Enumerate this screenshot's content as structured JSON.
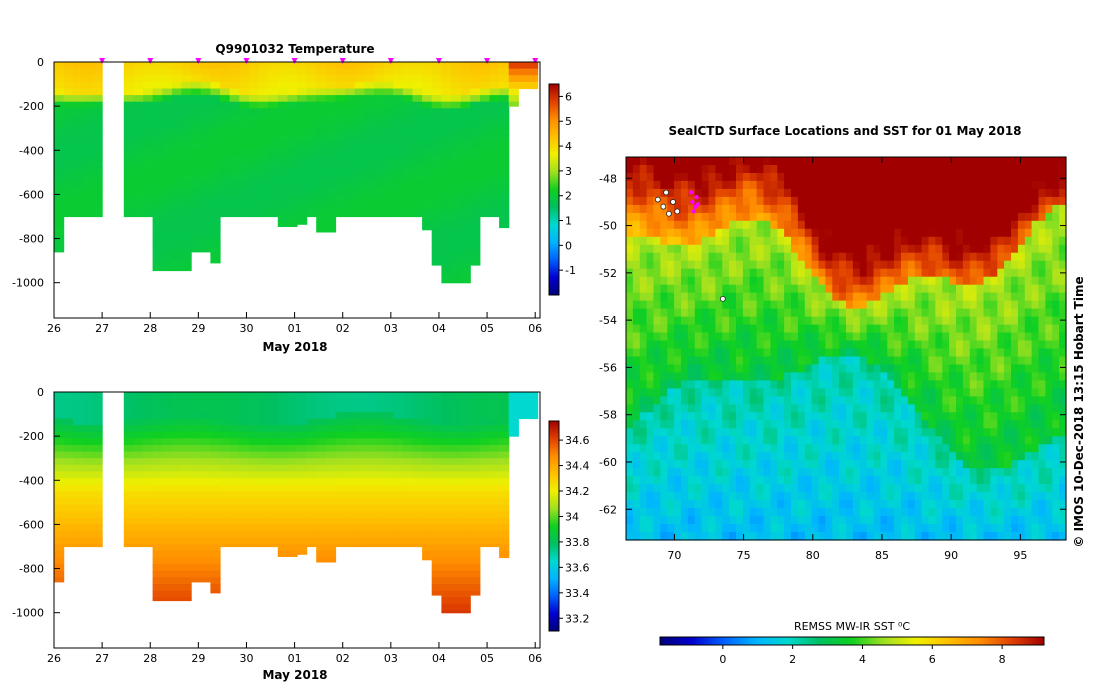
{
  "colors": {
    "cmap": [
      "#00007a",
      "#0000d0",
      "#0060ff",
      "#00b4ff",
      "#00d8d0",
      "#00c060",
      "#10d020",
      "#a0e020",
      "#f0f000",
      "#ffc000",
      "#ff8c00",
      "#e04000",
      "#a00000"
    ],
    "marker": "#ff00ff",
    "seals": "#ff00ff"
  },
  "chart_data": [
    {
      "type": "heatmap",
      "name": "temperature-section",
      "title": "Q9901032  Temperature",
      "xlabel": "May 2018",
      "x_tick_labels": [
        "26",
        "27",
        "28",
        "29",
        "30",
        "01",
        "02",
        "03",
        "04",
        "05",
        "06"
      ],
      "x_ticks": [
        0,
        1,
        2,
        3,
        4,
        5,
        6,
        7,
        8,
        9,
        10
      ],
      "xlim": [
        0,
        10.1
      ],
      "y_tick_labels": [
        "0",
        "-200",
        "-400",
        "-600",
        "-800",
        "-1000"
      ],
      "y_ticks": [
        0,
        -200,
        -400,
        -600,
        -800,
        -1000
      ],
      "ylim": [
        -1160,
        0
      ],
      "colorbar": {
        "min": -2,
        "max": 6.5,
        "ticks": [
          6,
          5,
          4,
          3,
          2,
          1,
          0,
          -1
        ]
      },
      "profile_marker_times": [
        1,
        2,
        3,
        4,
        5,
        6,
        7,
        8,
        9,
        10
      ],
      "profiles": [
        {
          "t": 0.1,
          "w": 0.2,
          "depth": 860
        },
        {
          "t": 0.3,
          "w": 0.2,
          "depth": 700
        },
        {
          "t": 0.5,
          "w": 0.2,
          "depth": 700
        },
        {
          "t": 0.7,
          "w": 0.2,
          "depth": 700
        },
        {
          "t": 0.9,
          "w": 0.2,
          "depth": 700
        },
        {
          "t": 1.55,
          "w": 0.2,
          "depth": 700
        },
        {
          "t": 1.75,
          "w": 0.2,
          "depth": 700
        },
        {
          "t": 1.95,
          "w": 0.2,
          "depth": 700
        },
        {
          "t": 2.15,
          "w": 0.2,
          "depth": 945
        },
        {
          "t": 2.35,
          "w": 0.2,
          "depth": 945
        },
        {
          "t": 2.55,
          "w": 0.2,
          "depth": 945
        },
        {
          "t": 2.75,
          "w": 0.2,
          "depth": 945
        },
        {
          "t": 2.95,
          "w": 0.2,
          "depth": 860
        },
        {
          "t": 3.15,
          "w": 0.2,
          "depth": 860
        },
        {
          "t": 3.35,
          "w": 0.2,
          "depth": 910
        },
        {
          "t": 3.55,
          "w": 0.2,
          "depth": 700
        },
        {
          "t": 3.75,
          "w": 0.2,
          "depth": 700
        },
        {
          "t": 3.95,
          "w": 0.2,
          "depth": 700
        },
        {
          "t": 4.15,
          "w": 0.2,
          "depth": 700
        },
        {
          "t": 4.35,
          "w": 0.2,
          "depth": 700
        },
        {
          "t": 4.55,
          "w": 0.2,
          "depth": 700
        },
        {
          "t": 4.75,
          "w": 0.2,
          "depth": 745
        },
        {
          "t": 4.95,
          "w": 0.2,
          "depth": 745
        },
        {
          "t": 5.15,
          "w": 0.2,
          "depth": 735
        },
        {
          "t": 5.35,
          "w": 0.2,
          "depth": 700
        },
        {
          "t": 5.55,
          "w": 0.2,
          "depth": 770
        },
        {
          "t": 5.75,
          "w": 0.2,
          "depth": 770
        },
        {
          "t": 5.95,
          "w": 0.2,
          "depth": 700
        },
        {
          "t": 6.15,
          "w": 0.2,
          "depth": 700
        },
        {
          "t": 6.35,
          "w": 0.2,
          "depth": 700
        },
        {
          "t": 6.55,
          "w": 0.2,
          "depth": 700
        },
        {
          "t": 6.75,
          "w": 0.2,
          "depth": 700
        },
        {
          "t": 6.95,
          "w": 0.2,
          "depth": 700
        },
        {
          "t": 7.15,
          "w": 0.2,
          "depth": 700
        },
        {
          "t": 7.35,
          "w": 0.2,
          "depth": 700
        },
        {
          "t": 7.55,
          "w": 0.2,
          "depth": 700
        },
        {
          "t": 7.75,
          "w": 0.2,
          "depth": 760
        },
        {
          "t": 7.95,
          "w": 0.2,
          "depth": 920
        },
        {
          "t": 8.15,
          "w": 0.2,
          "depth": 1000
        },
        {
          "t": 8.35,
          "w": 0.2,
          "depth": 1000
        },
        {
          "t": 8.55,
          "w": 0.2,
          "depth": 1000
        },
        {
          "t": 8.75,
          "w": 0.2,
          "depth": 920
        },
        {
          "t": 8.95,
          "w": 0.2,
          "depth": 700
        },
        {
          "t": 9.15,
          "w": 0.2,
          "depth": 700
        },
        {
          "t": 9.35,
          "w": 0.2,
          "depth": 750
        },
        {
          "t": 9.55,
          "w": 0.2,
          "depth": 200
        },
        {
          "t": 9.75,
          "w": 0.2,
          "depth": 120
        },
        {
          "t": 9.95,
          "w": 0.2,
          "depth": 120
        }
      ]
    },
    {
      "type": "heatmap",
      "name": "salinity-section",
      "title": "",
      "xlabel": "May 2018",
      "x_tick_labels": [
        "26",
        "27",
        "28",
        "29",
        "30",
        "01",
        "02",
        "03",
        "04",
        "05",
        "06"
      ],
      "x_ticks": [
        0,
        1,
        2,
        3,
        4,
        5,
        6,
        7,
        8,
        9,
        10
      ],
      "xlim": [
        0,
        10.1
      ],
      "y_tick_labels": [
        "0",
        "-200",
        "-400",
        "-600",
        "-800",
        "-1000"
      ],
      "y_ticks": [
        0,
        -200,
        -400,
        -600,
        -800,
        -1000
      ],
      "ylim": [
        -1160,
        0
      ],
      "colorbar": {
        "min": 33.1,
        "max": 34.75,
        "ticks": [
          34.6,
          34.4,
          34.2,
          34.0,
          33.8,
          33.6,
          33.4,
          33.2
        ],
        "tick_labels": [
          "34.6",
          "34.4",
          "34.2",
          "34",
          "33.8",
          "33.6",
          "33.4",
          "33.2"
        ]
      }
    },
    {
      "type": "heatmap",
      "name": "sst-map",
      "title": "SealCTD Surface Locations and SST for 01 May 2018",
      "x_tick_labels": [
        "70",
        "75",
        "80",
        "85",
        "90",
        "95"
      ],
      "x_ticks": [
        70,
        75,
        80,
        85,
        90,
        95
      ],
      "xlim": [
        66.5,
        98.3
      ],
      "y_tick_labels": [
        "-48",
        "-50",
        "-52",
        "-54",
        "-56",
        "-58",
        "-60",
        "-62"
      ],
      "y_ticks": [
        -48,
        -50,
        -52,
        -54,
        -56,
        -58,
        -60,
        -62
      ],
      "ylim": [
        -63.3,
        -47.1
      ],
      "colorbar": {
        "label": "REMSS MW-IR SST ⁰C",
        "min": -1.8,
        "max": 9.2,
        "ticks": [
          0,
          2,
          4,
          6,
          8
        ]
      },
      "seal_positions": [
        {
          "lon": 71.3,
          "lat": -49.0
        },
        {
          "lon": 71.5,
          "lat": -49.2
        },
        {
          "lon": 71.6,
          "lat": -48.8
        },
        {
          "lon": 71.4,
          "lat": -49.4
        },
        {
          "lon": 71.2,
          "lat": -48.6
        },
        {
          "lon": 71.7,
          "lat": -49.1
        }
      ],
      "track_positions": [
        {
          "lon": 68.8,
          "lat": -48.9
        },
        {
          "lon": 69.2,
          "lat": -49.2
        },
        {
          "lon": 69.6,
          "lat": -49.5
        },
        {
          "lon": 69.9,
          "lat": -49.0
        },
        {
          "lon": 70.2,
          "lat": -49.4
        },
        {
          "lon": 69.4,
          "lat": -48.6
        },
        {
          "lon": 73.5,
          "lat": -53.1
        }
      ]
    }
  ],
  "credit": "© IMOS 10-Dec-2018 13:15 Hobart Time"
}
